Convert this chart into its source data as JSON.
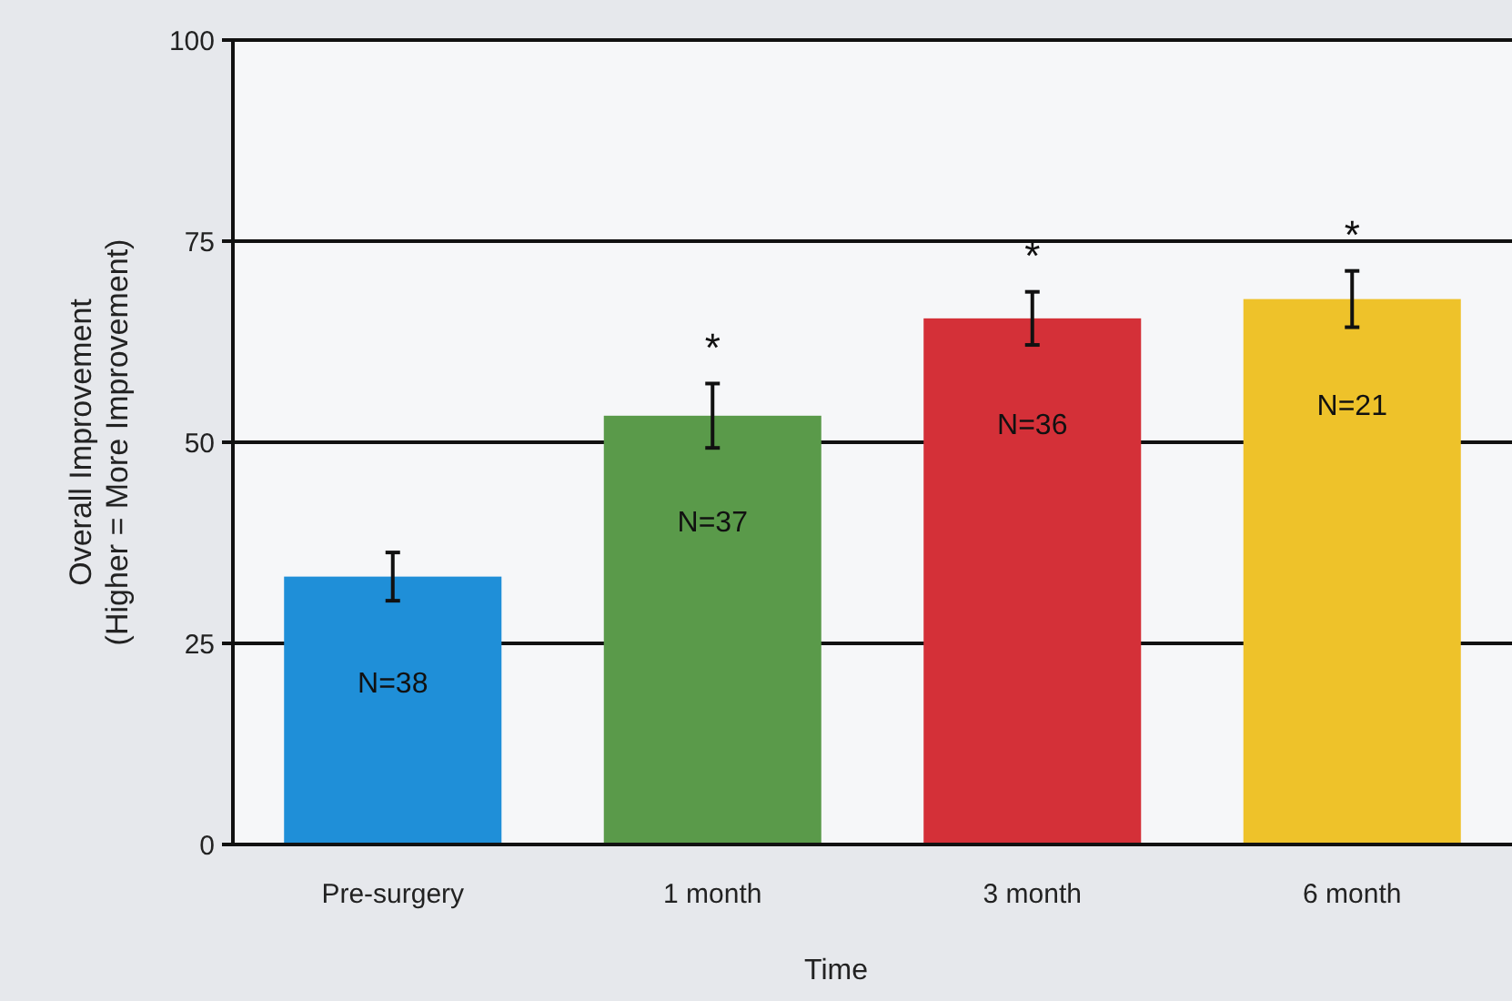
{
  "chart_data": {
    "type": "bar",
    "xlabel": "Time",
    "ylabel": "Overall Improvement\n(Higher = More Improvement)",
    "categories": [
      "Pre-surgery",
      "1 month",
      "3 month",
      "6 month"
    ],
    "values": [
      33.3,
      53.3,
      65.4,
      67.8
    ],
    "errors": [
      3,
      4,
      3.3,
      3.5
    ],
    "colors": [
      "#1f8fd8",
      "#5a9a4a",
      "#d43038",
      "#eec22a"
    ],
    "ylim": [
      0,
      100
    ],
    "yticks": [
      0,
      25,
      50,
      75,
      100
    ],
    "grid": "y",
    "annotations": [
      "N=38",
      "N=37",
      "N=36",
      "N=21",
      {
        "text": "*",
        "x": "1 month",
        "y": 57.3
      },
      {
        "text": "*",
        "x": "3 month",
        "y": 68.7
      },
      {
        "text": "*",
        "x": "6 month",
        "y": 71.3
      }
    ]
  }
}
